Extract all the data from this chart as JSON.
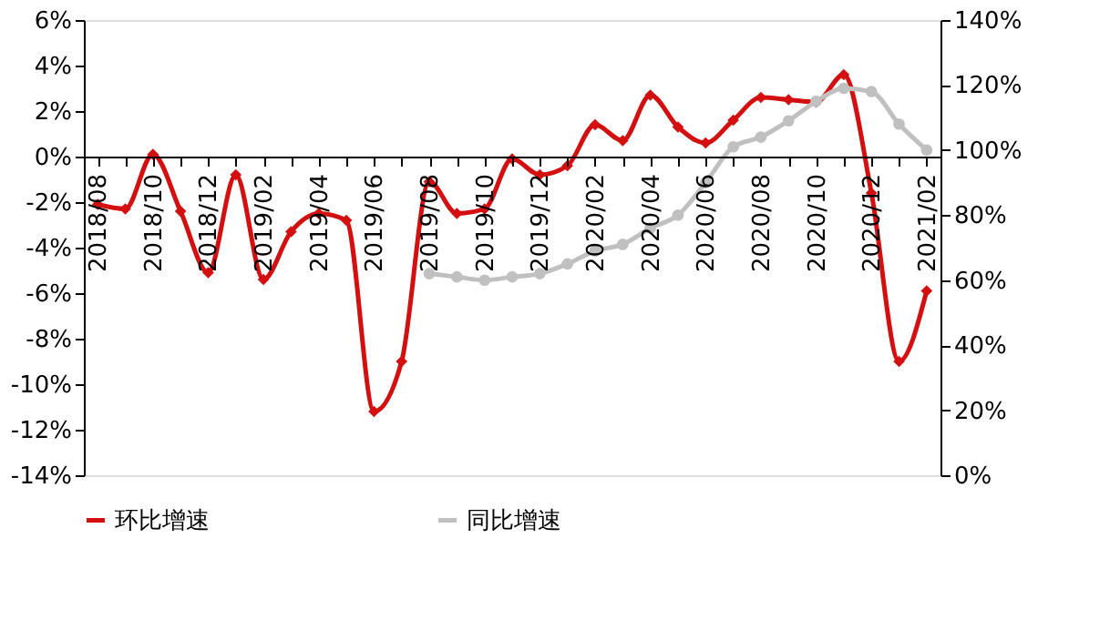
{
  "chart_data": {
    "type": "line",
    "categories": [
      "2018/08",
      null,
      "2018/10",
      null,
      "2018/12",
      null,
      "2019/02",
      null,
      "2019/04",
      null,
      "2019/06",
      null,
      "2019/08",
      null,
      "2019/10",
      null,
      "2019/12",
      null,
      "2020/02",
      null,
      "2020/04",
      null,
      "2020/06",
      null,
      "2020/08",
      null,
      "2020/10",
      null,
      "2020/12",
      null,
      "2021/02"
    ],
    "series": [
      {
        "name": "环比增速",
        "color": "#d40f0f",
        "marker": "diamond",
        "values": [
          -2.1,
          -2.3,
          0.1,
          -2.4,
          -5.1,
          -0.8,
          -5.4,
          -3.3,
          -2.5,
          -2.8,
          -11.2,
          -9.0,
          -1.1,
          -2.5,
          -2.3,
          -0.1,
          -0.8,
          -0.4,
          1.4,
          0.7,
          2.7,
          1.3,
          0.6,
          1.6,
          2.6,
          2.5,
          2.4,
          3.6,
          -1.6,
          -9.0,
          -5.9
        ]
      },
      {
        "name": "同比增速",
        "color": "#c0c0c0",
        "marker": "circle",
        "axis": "y2",
        "values": [
          null,
          null,
          null,
          null,
          null,
          null,
          null,
          null,
          null,
          null,
          null,
          null,
          62,
          61,
          60,
          61,
          62,
          65,
          69,
          71,
          76,
          80,
          90,
          101,
          104,
          109,
          115,
          119,
          118,
          108,
          100
        ]
      }
    ],
    "ylim": [
      -14,
      6
    ],
    "yticks": [
      {
        "value": -14,
        "label": "-14%"
      },
      {
        "value": -12,
        "label": "-12%"
      },
      {
        "value": -10,
        "label": "-10%"
      },
      {
        "value": -8,
        "label": "-8%"
      },
      {
        "value": -6,
        "label": "-6%"
      },
      {
        "value": -4,
        "label": "-4%"
      },
      {
        "value": -2,
        "label": "-2%"
      },
      {
        "value": 0,
        "label": "0%"
      },
      {
        "value": 2,
        "label": "2%"
      },
      {
        "value": 4,
        "label": "4%"
      },
      {
        "value": 6,
        "label": "6%"
      }
    ],
    "y2lim": [
      0,
      140
    ],
    "y2ticks": [
      {
        "value": 0,
        "label": "0%"
      },
      {
        "value": 20,
        "label": "20%"
      },
      {
        "value": 40,
        "label": "40%"
      },
      {
        "value": 60,
        "label": "60%"
      },
      {
        "value": 80,
        "label": "80%"
      },
      {
        "value": 100,
        "label": "100%"
      },
      {
        "value": 120,
        "label": "120%"
      },
      {
        "value": 140,
        "label": "140%"
      }
    ],
    "grid": false,
    "legend": "bottom",
    "line_style": "solid"
  }
}
